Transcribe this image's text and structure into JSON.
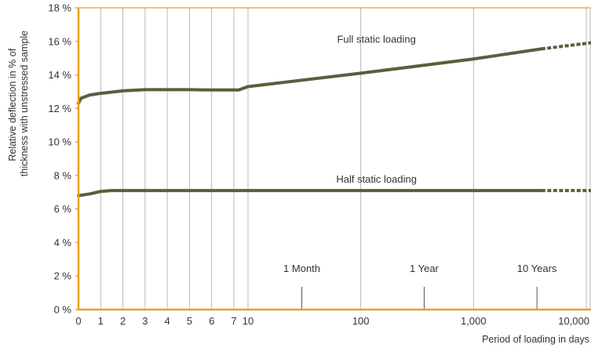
{
  "chart_data": {
    "type": "line",
    "x_scale": "stretched: 0-7 days linear, 7-10,000 days logarithmic",
    "xlabel": "Period of loading in days",
    "ylabel_lines": [
      "Relative deflection in % of",
      "thickness with unstressed sample"
    ],
    "ylim": [
      0,
      18
    ],
    "xlim": [
      0,
      14000
    ],
    "x_ticks": [
      {
        "value": 0,
        "label": "0"
      },
      {
        "value": 1,
        "label": "1"
      },
      {
        "value": 2,
        "label": "2"
      },
      {
        "value": 3,
        "label": "3"
      },
      {
        "value": 4,
        "label": "4"
      },
      {
        "value": 5,
        "label": "5"
      },
      {
        "value": 6,
        "label": "6"
      },
      {
        "value": 7,
        "label": "7"
      },
      {
        "value": 10,
        "label": "10"
      },
      {
        "value": 100,
        "label": "100"
      },
      {
        "value": 1000,
        "label": "1,000"
      },
      {
        "value": 10000,
        "label": "10,000"
      }
    ],
    "y_ticks": [
      {
        "value": 0,
        "label": "0 %"
      },
      {
        "value": 2,
        "label": "2 %"
      },
      {
        "value": 4,
        "label": "4 %"
      },
      {
        "value": 6,
        "label": "6 %"
      },
      {
        "value": 8,
        "label": "8 %"
      },
      {
        "value": 10,
        "label": "10 %"
      },
      {
        "value": 12,
        "label": "12 %"
      },
      {
        "value": 14,
        "label": "14 %"
      },
      {
        "value": 16,
        "label": "16 %"
      },
      {
        "value": 18,
        "label": "18 %"
      }
    ],
    "grid": "vertical",
    "series": [
      {
        "name": "Full static loading",
        "color": "#5a5e3c",
        "points": [
          [
            0,
            12.3
          ],
          [
            0.1,
            12.6
          ],
          [
            0.5,
            12.8
          ],
          [
            1,
            12.9
          ],
          [
            2,
            13.05
          ],
          [
            3,
            13.12
          ],
          [
            4,
            13.12
          ],
          [
            5,
            13.12
          ],
          [
            6,
            13.1
          ],
          [
            7,
            13.1
          ],
          [
            8,
            13.1
          ],
          [
            10,
            13.3
          ],
          [
            100,
            14.1
          ],
          [
            1000,
            14.95
          ],
          [
            4000,
            15.55
          ]
        ],
        "extrapolated": [
          [
            4000,
            15.55
          ],
          [
            14000,
            16.0
          ]
        ]
      },
      {
        "name": "Half static loading",
        "color": "#5a5e3c",
        "points": [
          [
            0,
            6.8
          ],
          [
            0.5,
            6.9
          ],
          [
            1,
            7.05
          ],
          [
            1.5,
            7.1
          ],
          [
            2,
            7.1
          ],
          [
            7,
            7.1
          ],
          [
            100,
            7.1
          ],
          [
            1000,
            7.1
          ],
          [
            4000,
            7.1
          ]
        ],
        "extrapolated": [
          [
            4000,
            7.1
          ],
          [
            14000,
            7.1
          ]
        ]
      }
    ],
    "annotations": [
      {
        "label": "1 Month",
        "x": 30
      },
      {
        "label": "1 Year",
        "x": 365
      },
      {
        "label": "10 Years",
        "x": 3650
      }
    ],
    "colors": {
      "axis": "#e8a020",
      "grid": "#a8a8a8",
      "line": "#5a5e3c",
      "text": "#333333"
    }
  }
}
